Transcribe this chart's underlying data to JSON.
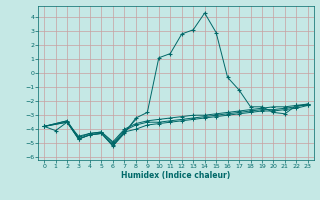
{
  "bg_color": "#c5e8e5",
  "grid_color": "#c8a0a0",
  "line_color": "#006868",
  "xlabel": "Humidex (Indice chaleur)",
  "xlim": [
    -0.5,
    23.5
  ],
  "ylim": [
    -6.2,
    4.8
  ],
  "yticks": [
    -6,
    -5,
    -4,
    -3,
    -2,
    -1,
    0,
    1,
    2,
    3,
    4
  ],
  "xticks": [
    0,
    1,
    2,
    3,
    4,
    5,
    6,
    7,
    8,
    9,
    10,
    11,
    12,
    13,
    14,
    15,
    16,
    17,
    18,
    19,
    20,
    21,
    22,
    23
  ],
  "line1_x": [
    0,
    1,
    2,
    3,
    4,
    5,
    6,
    7,
    8,
    9,
    10,
    11,
    12,
    13,
    14,
    15,
    16,
    17,
    18,
    19,
    20,
    21,
    22,
    23
  ],
  "line1_y": [
    -3.8,
    -4.1,
    -3.5,
    -4.7,
    -4.4,
    -4.3,
    -5.2,
    -4.3,
    -3.2,
    -2.8,
    1.1,
    1.4,
    2.8,
    3.1,
    4.3,
    2.9,
    -0.3,
    -1.2,
    -2.4,
    -2.4,
    -2.8,
    -2.9,
    -2.3,
    -2.3
  ],
  "line2_x": [
    0,
    2,
    3,
    4,
    5,
    6,
    7,
    8,
    9,
    10,
    11,
    12,
    13,
    14,
    15,
    16,
    17,
    18,
    19,
    20,
    21,
    22,
    23
  ],
  "line2_y": [
    -3.8,
    -3.5,
    -4.5,
    -4.3,
    -4.2,
    -4.9,
    -4.0,
    -3.6,
    -3.4,
    -3.3,
    -3.2,
    -3.1,
    -3.0,
    -3.0,
    -2.9,
    -2.8,
    -2.7,
    -2.6,
    -2.5,
    -2.4,
    -2.4,
    -2.3,
    -2.2
  ],
  "line3_x": [
    0,
    2,
    3,
    4,
    5,
    6,
    7,
    8,
    9,
    10,
    11,
    12,
    13,
    14,
    15,
    16,
    17,
    18,
    19,
    20,
    21,
    22,
    23
  ],
  "line3_y": [
    -3.8,
    -3.4,
    -4.6,
    -4.3,
    -4.2,
    -5.0,
    -4.1,
    -3.7,
    -3.5,
    -3.5,
    -3.4,
    -3.3,
    -3.2,
    -3.1,
    -3.0,
    -2.9,
    -2.8,
    -2.7,
    -2.6,
    -2.6,
    -2.5,
    -2.4,
    -2.2
  ],
  "line4_x": [
    0,
    2,
    3,
    4,
    5,
    6,
    7,
    8,
    9,
    10,
    11,
    12,
    13,
    14,
    15,
    16,
    17,
    18,
    19,
    20,
    21,
    22,
    23
  ],
  "line4_y": [
    -3.8,
    -3.5,
    -4.7,
    -4.4,
    -4.3,
    -5.1,
    -4.2,
    -4.0,
    -3.7,
    -3.6,
    -3.5,
    -3.4,
    -3.3,
    -3.2,
    -3.1,
    -3.0,
    -2.9,
    -2.8,
    -2.7,
    -2.7,
    -2.6,
    -2.5,
    -2.3
  ],
  "line5_x": [
    0,
    2,
    3,
    4,
    5,
    6,
    7,
    8
  ],
  "line5_y": [
    -3.8,
    -3.4,
    -4.7,
    -4.4,
    -4.3,
    -5.2,
    -4.2,
    -3.3
  ]
}
